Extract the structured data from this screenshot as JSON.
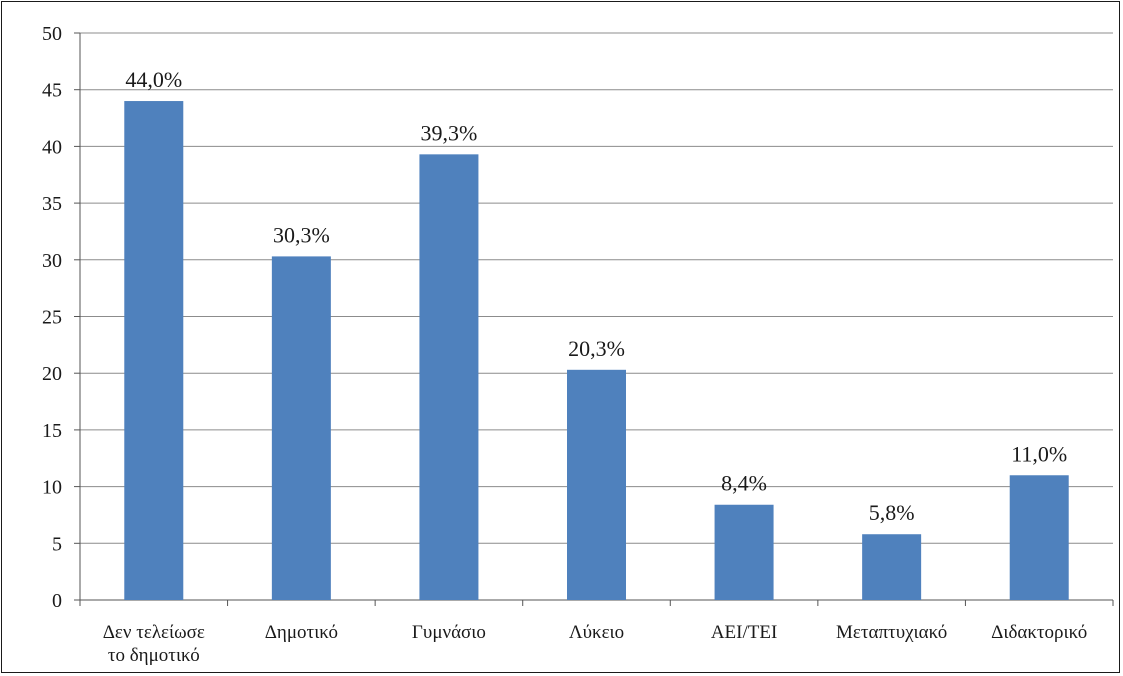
{
  "chart_data": {
    "type": "bar",
    "categories": [
      [
        "Δεν τελείωσε",
        "το δημοτικό"
      ],
      [
        "Δημοτικό"
      ],
      [
        "Γυμνάσιο"
      ],
      [
        "Λύκειο"
      ],
      [
        "ΑΕΙ/ΤΕΙ"
      ],
      [
        "Μεταπτυχιακό"
      ],
      [
        "Διδακτορικό"
      ]
    ],
    "values": [
      44.0,
      30.3,
      39.3,
      20.3,
      8.4,
      5.8,
      11.0
    ],
    "data_labels": [
      "44,0%",
      "30,3%",
      "39,3%",
      "20,3%",
      "8,4%",
      "5,8%",
      "11,0%"
    ],
    "yticks": [
      "0",
      "5",
      "10",
      "15",
      "20",
      "25",
      "30",
      "35",
      "40",
      "45",
      "50"
    ],
    "ylim": [
      0,
      50
    ],
    "grid": true,
    "bar_color": "#4f81bd",
    "grid_color": "#8c8c8c"
  }
}
